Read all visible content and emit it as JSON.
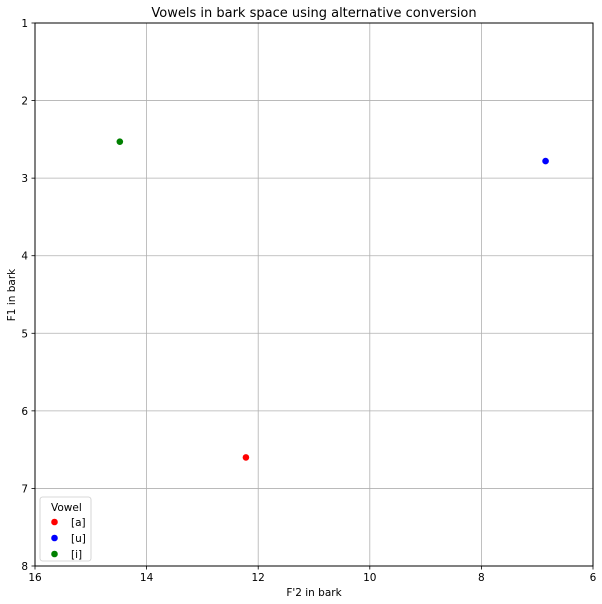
{
  "chart_data": {
    "type": "scatter",
    "title": "Vowels in bark space using alternative conversion",
    "xlabel": "F'2 in bark",
    "ylabel": "F1 in bark",
    "xlim": [
      16,
      6
    ],
    "ylim": [
      8,
      1
    ],
    "x_inverted": true,
    "y_inverted": true,
    "xticks": [
      16,
      14,
      12,
      10,
      8,
      6
    ],
    "yticks": [
      1,
      2,
      3,
      4,
      5,
      6,
      7,
      8
    ],
    "grid": true,
    "legend": {
      "title": "Vowel",
      "placement": "lower-left"
    },
    "series": [
      {
        "name": "[a]",
        "color": "#ff0000",
        "x": [
          12.22
        ],
        "y": [
          6.6
        ]
      },
      {
        "name": "[u]",
        "color": "#0000ff",
        "x": [
          6.85
        ],
        "y": [
          2.78
        ]
      },
      {
        "name": "[i]",
        "color": "#008000",
        "x": [
          14.48
        ],
        "y": [
          2.53
        ]
      }
    ]
  }
}
